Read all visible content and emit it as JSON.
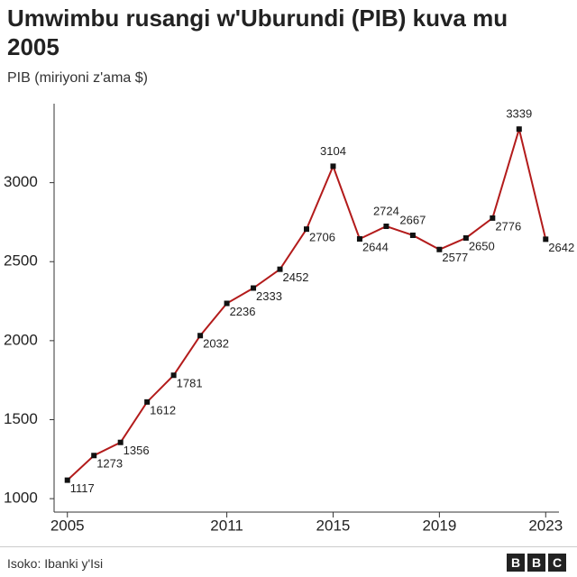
{
  "chart_data": {
    "type": "line",
    "title": "Umwimbu rusangi w'Uburundi (PIB) kuva mu 2005",
    "y_label": "PIB (miriyoni z'ama $)",
    "source": "Isoko: Ibanki y'Isi",
    "logo": [
      "B",
      "B",
      "C"
    ],
    "x": [
      2005,
      2006,
      2007,
      2008,
      2009,
      2010,
      2011,
      2012,
      2013,
      2014,
      2015,
      2016,
      2017,
      2018,
      2019,
      2020,
      2021,
      2022,
      2023
    ],
    "series": [
      {
        "color": "#b31b1b",
        "values": [
          1117,
          1273,
          1356,
          1612,
          1781,
          2032,
          2236,
          2333,
          2452,
          2706,
          3104,
          2644,
          2724,
          2667,
          2577,
          2650,
          2776,
          3339,
          2642
        ]
      }
    ],
    "xlim": [
      2004.5,
      2023.5
    ],
    "xticks": [
      2005,
      2011,
      2015,
      2019,
      2023
    ],
    "ylim": [
      915,
      3500
    ],
    "yticks": [
      1000,
      1500,
      2000,
      2500,
      3000
    ],
    "grid": false
  }
}
